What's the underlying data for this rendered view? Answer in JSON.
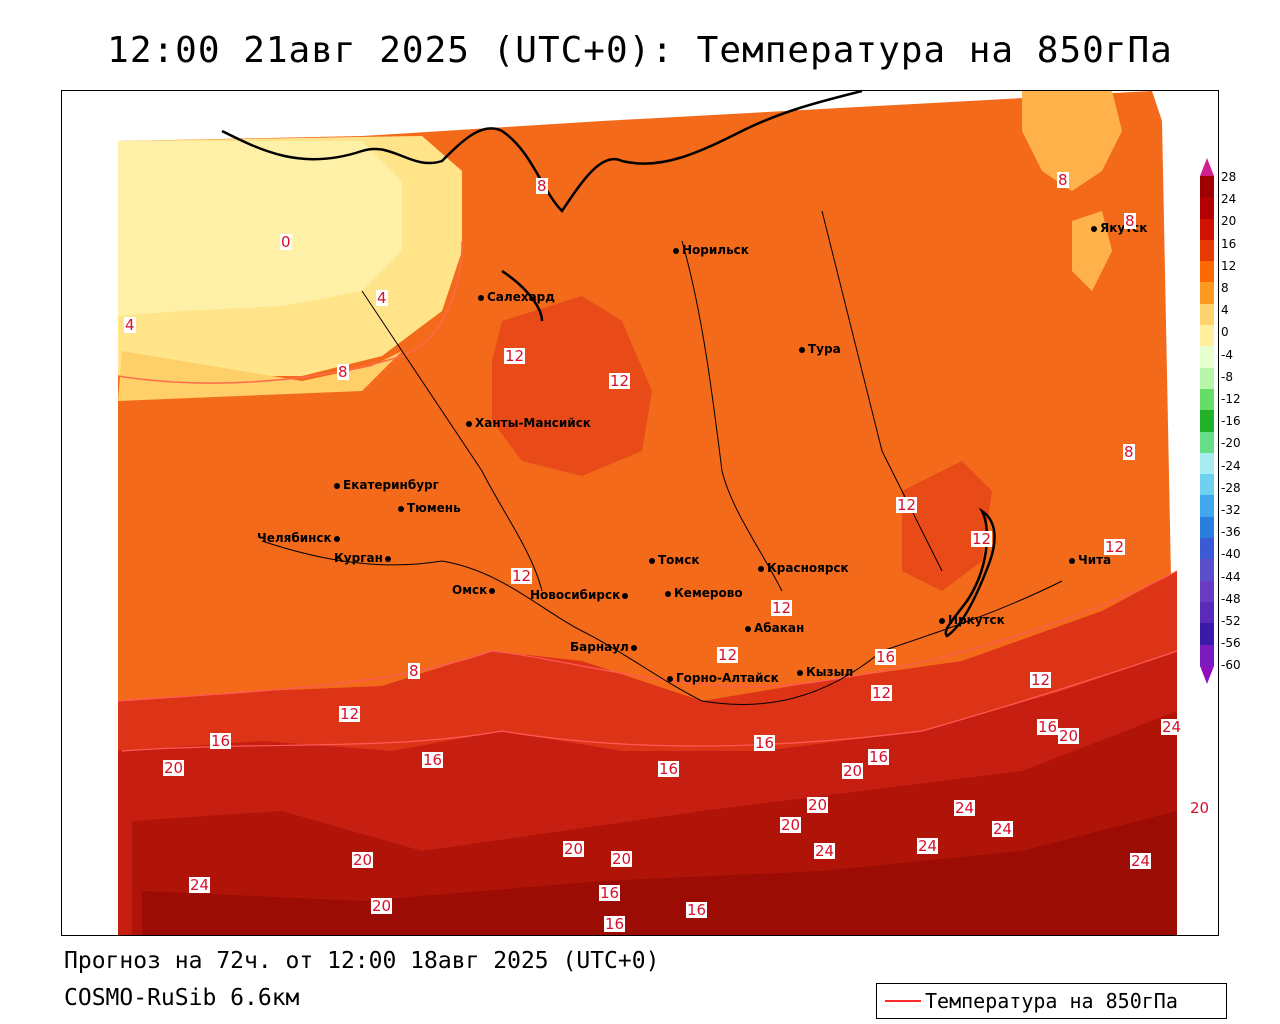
{
  "title": "12:00 21авг 2025 (UTC+0): Температура на 850гПа",
  "footer": {
    "forecast": "Прогноз на 72ч. от 12:00 18авг 2025 (UTC+0)",
    "model": "COSMO-RuSib 6.6км"
  },
  "legend": {
    "label": "Температура на 850гПа",
    "line_color": "#ff2a2a"
  },
  "colorbar": {
    "ticks": [
      "28",
      "24",
      "20",
      "16",
      "12",
      "8",
      "4",
      "0",
      "-4",
      "-8",
      "-12",
      "-16",
      "-20",
      "-24",
      "-28",
      "-32",
      "-36",
      "-40",
      "-44",
      "-48",
      "-52",
      "-56",
      "-60"
    ],
    "colors": [
      "#9e0000",
      "#b30000",
      "#d11200",
      "#e63a00",
      "#ff6a00",
      "#ff9a20",
      "#ffd36e",
      "#ffef9e",
      "#e8ffd0",
      "#b8f5a8",
      "#66dd66",
      "#22b22a",
      "#66dd88",
      "#a6ecf0",
      "#6fd0ef",
      "#40a8ee",
      "#2a7fde",
      "#3a5ad6",
      "#5a50cc",
      "#6a3cc4",
      "#5a2ab8",
      "#3a1aa8",
      "#7a1ac0"
    ],
    "top_arrow_color": "#d02090",
    "bottom_arrow_color": "#9010c0"
  },
  "cities": [
    {
      "name": "Норильск"
    },
    {
      "name": "Якутск"
    },
    {
      "name": "Салехард"
    },
    {
      "name": "Тура"
    },
    {
      "name": "Ханты-Мансийск"
    },
    {
      "name": "Екатеринбург"
    },
    {
      "name": "Тюмень"
    },
    {
      "name": "Челябинск"
    },
    {
      "name": "Курган"
    },
    {
      "name": "Омск"
    },
    {
      "name": "Томск"
    },
    {
      "name": "Красноярск"
    },
    {
      "name": "Новосибирск"
    },
    {
      "name": "Кемерово"
    },
    {
      "name": "Абакан"
    },
    {
      "name": "Барнаул"
    },
    {
      "name": "Горно-Алтайск"
    },
    {
      "name": "Кызыл"
    },
    {
      "name": "Иркутск"
    },
    {
      "name": "Чита"
    }
  ],
  "isotherm_labels": [
    "0",
    "4",
    "4",
    "8",
    "8",
    "8",
    "8",
    "8",
    "8",
    "12",
    "12",
    "12",
    "12",
    "12",
    "12",
    "12",
    "12",
    "12",
    "12",
    "12",
    "16",
    "16",
    "16",
    "16",
    "16",
    "16",
    "16",
    "16",
    "16",
    "16",
    "20",
    "20",
    "20",
    "20",
    "20",
    "20",
    "20",
    "20",
    "20",
    "20",
    "24",
    "24",
    "24",
    "24",
    "24",
    "24",
    "24"
  ]
}
